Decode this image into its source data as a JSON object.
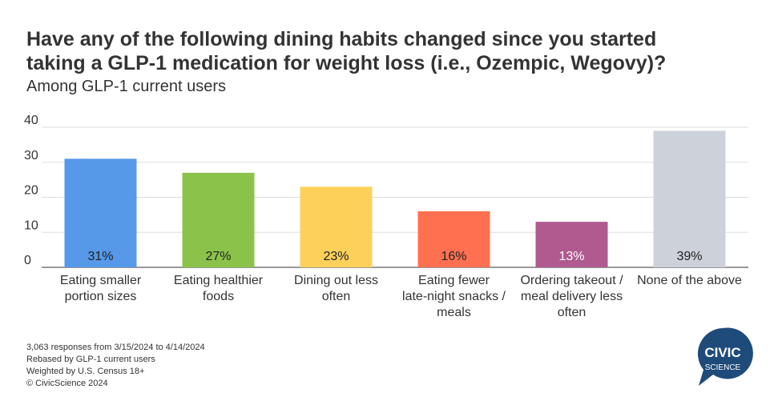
{
  "chart_data": {
    "type": "bar",
    "title": [
      "Have any of the following dining habits changed since you started",
      "taking a GLP-1 medication for weight loss (i.e., Ozempic, Wegovy)?"
    ],
    "subtitle": "Among GLP-1 current users",
    "categories": [
      [
        "Eating smaller",
        "portion sizes"
      ],
      [
        "Eating healthier",
        "foods"
      ],
      [
        "Dining out less",
        "often"
      ],
      [
        "Eating fewer",
        "late-night snacks /",
        "meals"
      ],
      [
        "Ordering takeout /",
        "meal delivery less",
        "often"
      ],
      [
        "None of the above"
      ]
    ],
    "values": [
      31,
      27,
      23,
      16,
      13,
      39
    ],
    "value_labels": [
      "31%",
      "27%",
      "23%",
      "16%",
      "13%",
      "39%"
    ],
    "colors": [
      "#5599e8",
      "#8bc34a",
      "#fdd05a",
      "#ff7051",
      "#b05a90",
      "#cdd1da"
    ],
    "value_label_colors": [
      "#222",
      "#222",
      "#222",
      "#222",
      "#fff",
      "#222"
    ],
    "ylim": [
      0,
      40
    ],
    "yticks": [
      0,
      10,
      20,
      30,
      40
    ],
    "grid": true,
    "footnotes": [
      "3,063 responses from 3/15/2024 to 4/14/2024",
      "Rebased by GLP-1 current users",
      "Weighted by U.S. Census 18+",
      "© CivicScience 2024"
    ],
    "logo": [
      "CIVIC",
      "SCIENCE"
    ]
  }
}
